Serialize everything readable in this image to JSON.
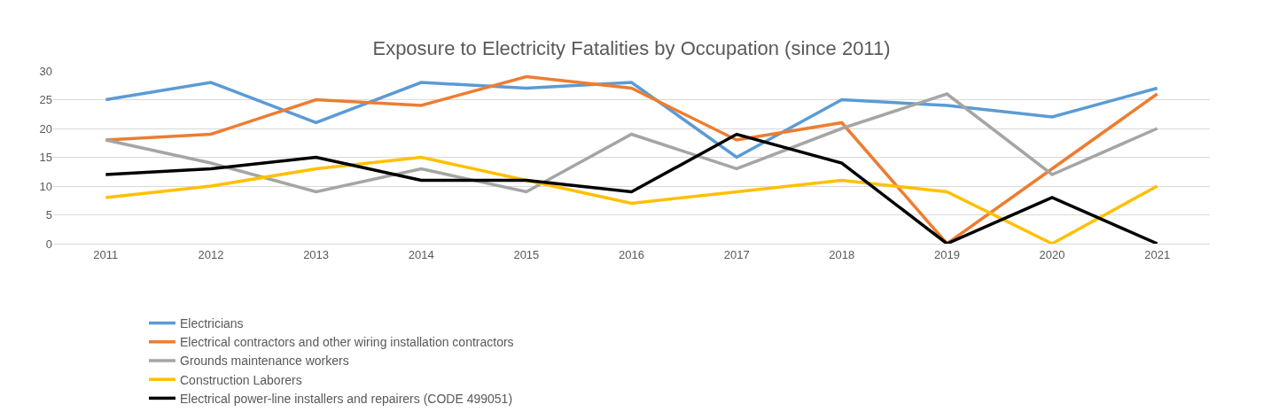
{
  "chart_data": {
    "type": "line",
    "title": "Exposure to Electricity Fatalities by Occupation (since 2011)",
    "categories": [
      "2011",
      "2012",
      "2013",
      "2014",
      "2015",
      "2016",
      "2017",
      "2018",
      "2019",
      "2020",
      "2021"
    ],
    "series": [
      {
        "name": "Electricians",
        "color": "#5b9bd5",
        "values": [
          25,
          28,
          21,
          28,
          27,
          28,
          15,
          25,
          24,
          22,
          27
        ]
      },
      {
        "name": "Electrical contractors and other wiring installation contractors",
        "color": "#ed7d31",
        "values": [
          18,
          19,
          25,
          24,
          29,
          27,
          18,
          21,
          0,
          13,
          26
        ]
      },
      {
        "name": "Grounds maintenance workers",
        "color": "#a5a5a5",
        "values": [
          18,
          14,
          9,
          13,
          9,
          19,
          13,
          20,
          26,
          12,
          20
        ]
      },
      {
        "name": "Construction Laborers",
        "color": "#ffc000",
        "values": [
          8,
          10,
          13,
          15,
          11,
          7,
          9,
          11,
          9,
          0,
          10
        ]
      },
      {
        "name": "Electrical power-line installers and repairers (CODE 499051)",
        "color": "#000000",
        "values": [
          12,
          13,
          15,
          11,
          11,
          9,
          19,
          14,
          0,
          8,
          0
        ]
      }
    ],
    "ylim": [
      0,
      30
    ],
    "yticks": [
      0,
      5,
      10,
      15,
      20,
      25,
      30
    ],
    "grid": "y",
    "legend": "bottom",
    "marker": "none",
    "line_style": "solid"
  }
}
